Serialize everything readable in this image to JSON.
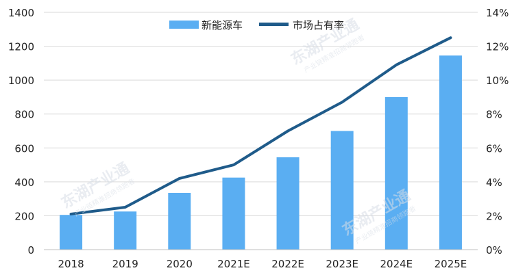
{
  "chart_data": {
    "type": "bar",
    "categories": [
      "2018",
      "2019",
      "2020",
      "2021E",
      "2022E",
      "2023E",
      "2024E",
      "2025E"
    ],
    "series": [
      {
        "name": "新能源车",
        "type": "bar",
        "axis": "left",
        "color": "#5aaef2",
        "values": [
          205,
          225,
          335,
          425,
          545,
          700,
          900,
          1145
        ]
      },
      {
        "name": "市场占有率",
        "type": "line",
        "axis": "right",
        "color": "#1f5b8a",
        "values": [
          0.021,
          0.025,
          0.042,
          0.05,
          0.07,
          0.087,
          0.109,
          0.125
        ]
      }
    ],
    "y_left": {
      "min": 0,
      "max": 1400,
      "step": 200,
      "tick_labels": [
        "0",
        "200",
        "400",
        "600",
        "800",
        "1000",
        "1200",
        "1400"
      ]
    },
    "y_right": {
      "min": 0,
      "max": 0.14,
      "step": 0.02,
      "tick_labels": [
        "0%",
        "2%",
        "4%",
        "6%",
        "8%",
        "10%",
        "12%",
        "14%"
      ]
    },
    "grid": true,
    "legend_position": "top-center"
  },
  "watermark": {
    "text_main": "东湖产业通",
    "text_sub": "产业链精准招商领跑者"
  }
}
